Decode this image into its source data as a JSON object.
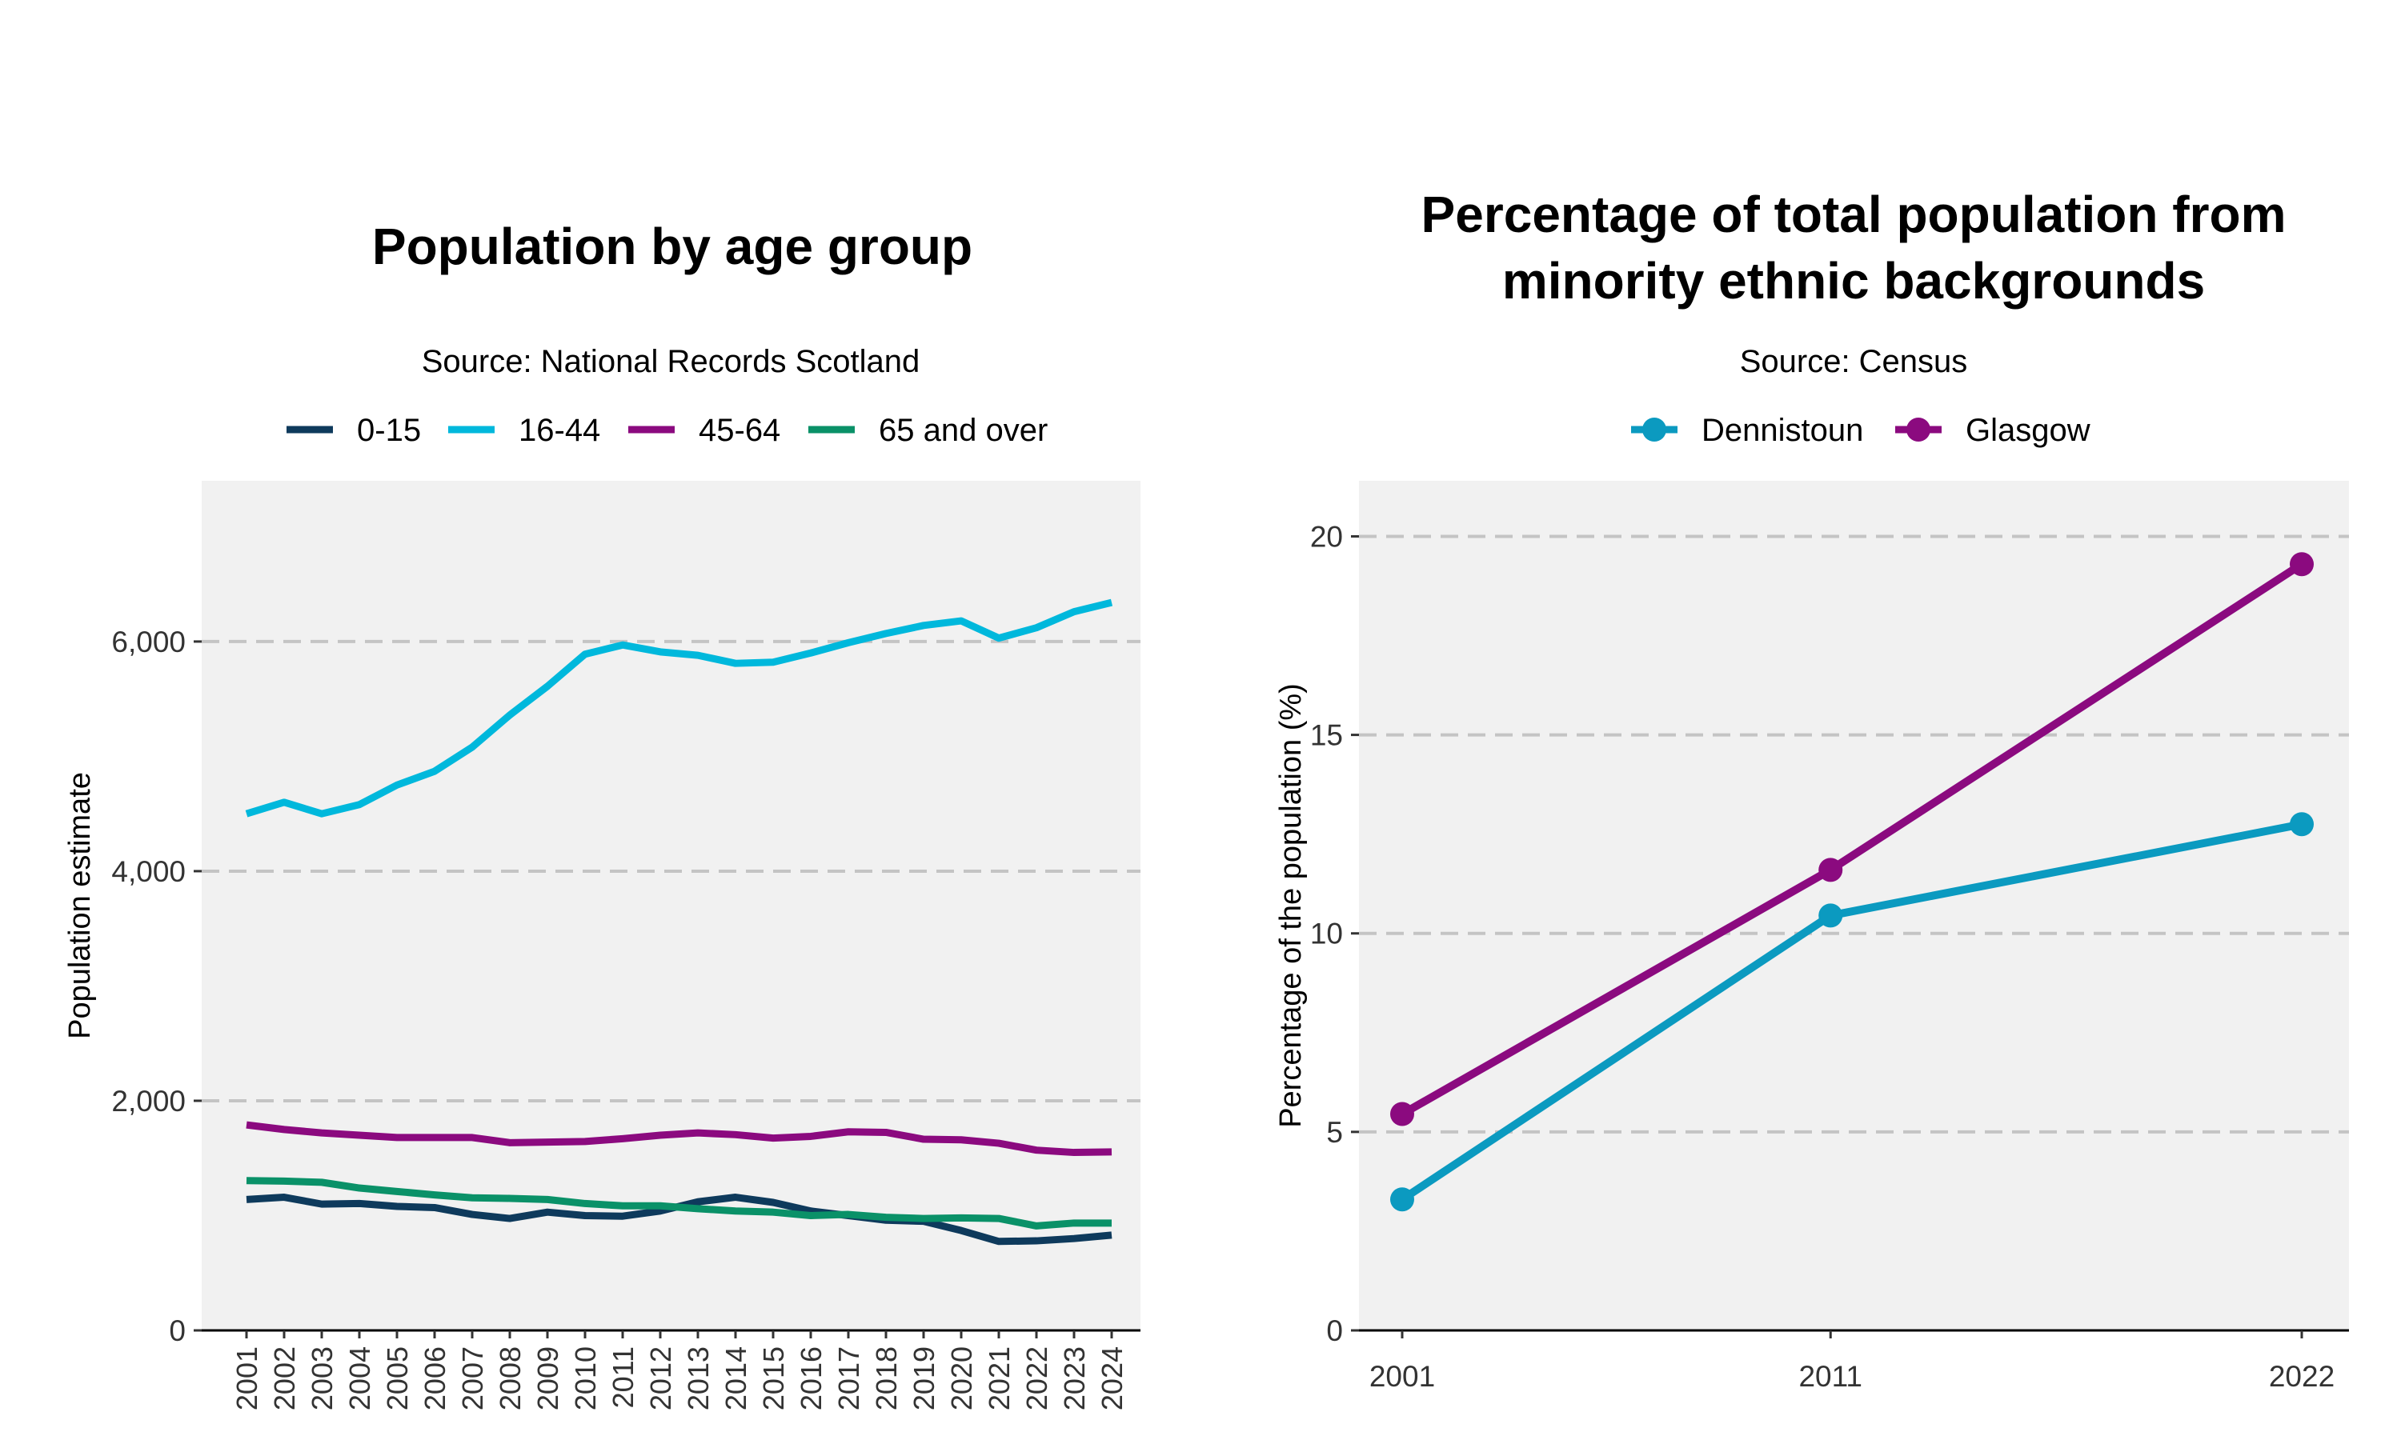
{
  "chart_data": [
    {
      "type": "line",
      "title": "Population by age group",
      "subtitle": "Source: National Records Scotland",
      "xlabel": "",
      "ylabel": "Population estimate",
      "ylim": [
        0,
        7400
      ],
      "y_ticks": [
        0,
        2000,
        4000,
        6000
      ],
      "y_tick_labels": [
        "0",
        "2,000",
        "4,000",
        "6,000"
      ],
      "grid": "horizontal dashed",
      "legend_position": "top",
      "x": [
        "2001",
        "2002",
        "2003",
        "2004",
        "2005",
        "2006",
        "2007",
        "2008",
        "2009",
        "2010",
        "2011",
        "2012",
        "2013",
        "2014",
        "2015",
        "2016",
        "2017",
        "2018",
        "2019",
        "2020",
        "2021",
        "2022",
        "2023",
        "2024"
      ],
      "series": [
        {
          "name": "0-15",
          "color": "#0e3a5c",
          "values": [
            1140,
            1160,
            1100,
            1105,
            1080,
            1070,
            1010,
            975,
            1030,
            1000,
            995,
            1040,
            1120,
            1160,
            1115,
            1040,
            1000,
            960,
            950,
            870,
            775,
            780,
            800,
            830
          ]
        },
        {
          "name": "16-44",
          "color": "#00b8dc",
          "values": [
            4500,
            4600,
            4500,
            4580,
            4750,
            4870,
            5080,
            5360,
            5610,
            5890,
            5970,
            5910,
            5880,
            5810,
            5820,
            5900,
            5990,
            6070,
            6140,
            6180,
            6030,
            6120,
            6260,
            6340
          ]
        },
        {
          "name": "45-64",
          "color": "#8b0a7f",
          "values": [
            1790,
            1750,
            1720,
            1700,
            1680,
            1680,
            1680,
            1635,
            1640,
            1645,
            1670,
            1700,
            1720,
            1705,
            1675,
            1690,
            1730,
            1725,
            1665,
            1660,
            1630,
            1570,
            1550,
            1555
          ]
        },
        {
          "name": "65 and over",
          "color": "#0a9168",
          "values": [
            1305,
            1300,
            1290,
            1240,
            1210,
            1180,
            1155,
            1150,
            1140,
            1105,
            1085,
            1085,
            1060,
            1040,
            1030,
            1000,
            1010,
            985,
            975,
            980,
            975,
            910,
            935,
            935
          ]
        }
      ]
    },
    {
      "type": "line",
      "title_lines": [
        "Percentage of total population from",
        "minority ethnic backgrounds"
      ],
      "subtitle": "Source: Census",
      "xlabel": "",
      "ylabel": "Percentage of the population (%)",
      "ylim": [
        0,
        21.4
      ],
      "y_ticks": [
        0,
        5,
        10,
        15,
        20
      ],
      "y_tick_labels": [
        "0",
        "5",
        "10",
        "15",
        "20"
      ],
      "grid": "horizontal dashed",
      "legend_position": "top",
      "x": [
        "2001",
        "2011",
        "2022"
      ],
      "x_numeric": [
        2001,
        2011,
        2022
      ],
      "series": [
        {
          "name": "Dennistoun",
          "color": "#0b9ac0",
          "values": [
            3.3,
            10.45,
            12.75
          ]
        },
        {
          "name": "Glasgow",
          "color": "#8b0a7f",
          "values": [
            5.45,
            11.6,
            19.3
          ]
        }
      ]
    }
  ]
}
